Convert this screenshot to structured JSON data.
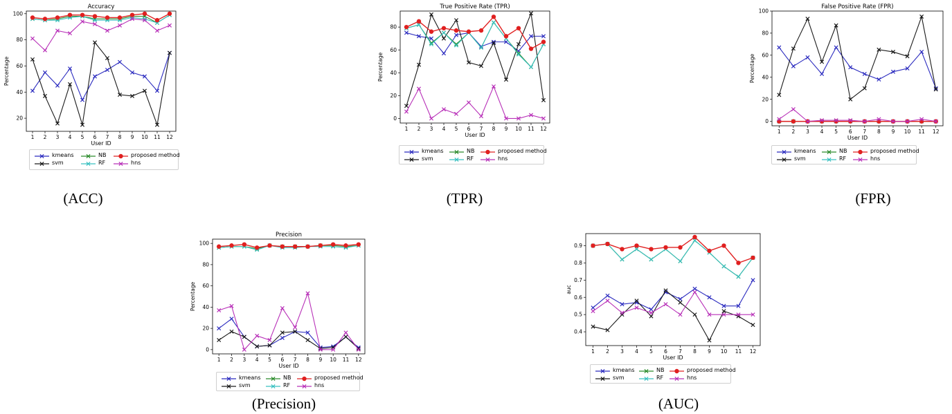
{
  "colors": {
    "kmeans": "#2b2bbf",
    "svm": "#1a1a1a",
    "NB": "#2a8a2a",
    "RF": "#38c0c0",
    "proposed": "#e02020",
    "hns": "#b830b8"
  },
  "legend_labels": {
    "kmeans": "kmeans",
    "svm": "svm",
    "NB": "NB",
    "RF": "RF",
    "proposed": "proposed method",
    "hns": "hns"
  },
  "captions": {
    "acc": "(ACC)",
    "tpr": "(TPR)",
    "fpr": "(FPR)",
    "precision": "(Precision)",
    "auc": "(AUC)"
  },
  "chart_data": [
    {
      "id": "acc",
      "type": "line",
      "title": "Accuracy",
      "xlabel": "User ID",
      "ylabel": "Percentage",
      "x": [
        1,
        2,
        3,
        4,
        5,
        6,
        7,
        8,
        9,
        10,
        11,
        12
      ],
      "ylim": [
        10,
        102
      ],
      "yticks": [
        20,
        40,
        60,
        80,
        100
      ],
      "grid": false,
      "legend_position": "below",
      "series": [
        {
          "key": "kmeans",
          "name": "kmeans",
          "values": [
            41,
            55,
            45,
            58,
            34,
            52,
            57,
            63,
            55,
            52,
            41,
            70
          ]
        },
        {
          "key": "svm",
          "name": "svm",
          "values": [
            65,
            37,
            16,
            46,
            15,
            78,
            66,
            38,
            37,
            41,
            15,
            70
          ]
        },
        {
          "key": "NB",
          "name": "NB",
          "values": [
            96,
            95,
            96,
            98,
            98,
            96,
            96,
            96,
            98,
            98,
            93,
            99
          ]
        },
        {
          "key": "RF",
          "name": "RF",
          "values": [
            96,
            95,
            95,
            97,
            98,
            95,
            95,
            95,
            97,
            96,
            93,
            99
          ]
        },
        {
          "key": "proposed",
          "name": "proposed method",
          "values": [
            97,
            96,
            97,
            99,
            99,
            98,
            97,
            97,
            99,
            100,
            95,
            100
          ]
        },
        {
          "key": "hns",
          "name": "hns",
          "values": [
            81,
            72,
            87,
            85,
            94,
            92,
            87,
            91,
            96,
            95,
            87,
            91
          ]
        }
      ]
    },
    {
      "id": "tpr",
      "type": "line",
      "title": "True Positive Rate (TPR)",
      "xlabel": "User ID",
      "ylabel": "Percentage",
      "x": [
        1,
        2,
        3,
        4,
        5,
        6,
        7,
        8,
        9,
        10,
        11,
        12
      ],
      "ylim": [
        -4,
        94
      ],
      "yticks": [
        0,
        20,
        40,
        60,
        80
      ],
      "grid": false,
      "legend_position": "below",
      "series": [
        {
          "key": "kmeans",
          "name": "kmeans",
          "values": [
            75,
            72,
            70,
            57,
            73,
            75,
            63,
            67,
            67,
            59,
            72,
            72
          ]
        },
        {
          "key": "svm",
          "name": "svm",
          "values": [
            11,
            47,
            91,
            70,
            86,
            49,
            46,
            66,
            34,
            65,
            92,
            16
          ]
        },
        {
          "key": "NB",
          "name": "NB",
          "values": [
            79,
            82,
            66,
            75,
            65,
            75,
            62,
            84,
            70,
            57,
            45,
            65
          ]
        },
        {
          "key": "RF",
          "name": "RF",
          "values": [
            79,
            82,
            65,
            75,
            64,
            75,
            62,
            84,
            70,
            56,
            45,
            65
          ]
        },
        {
          "key": "proposed",
          "name": "proposed method",
          "values": [
            80,
            85,
            76,
            79,
            77,
            76,
            77,
            89,
            72,
            79,
            61,
            67
          ]
        },
        {
          "key": "hns",
          "name": "hns",
          "values": [
            6,
            26,
            0,
            8,
            4,
            14,
            2,
            28,
            0,
            0,
            3,
            0
          ]
        }
      ]
    },
    {
      "id": "fpr",
      "type": "line",
      "title": "False Positive Rate (FPR)",
      "xlabel": "User ID",
      "ylabel": "Percentage",
      "x": [
        1,
        2,
        3,
        4,
        5,
        6,
        7,
        8,
        9,
        10,
        11,
        12
      ],
      "ylim": [
        -4,
        100
      ],
      "yticks": [
        0,
        20,
        40,
        60,
        80,
        100
      ],
      "grid": false,
      "legend_position": "below",
      "series": [
        {
          "key": "kmeans",
          "name": "kmeans",
          "values": [
            67,
            50,
            58,
            43,
            67,
            49,
            43,
            38,
            45,
            48,
            63,
            30
          ]
        },
        {
          "key": "svm",
          "name": "svm",
          "values": [
            24,
            66,
            93,
            54,
            87,
            20,
            30,
            65,
            63,
            59,
            95,
            29
          ]
        },
        {
          "key": "NB",
          "name": "NB",
          "values": [
            0,
            0,
            0,
            0,
            0,
            0,
            0,
            0,
            0,
            0,
            0,
            0
          ]
        },
        {
          "key": "RF",
          "name": "RF",
          "values": [
            0,
            0,
            0,
            0,
            0,
            0,
            0,
            0,
            0,
            0,
            0,
            0
          ]
        },
        {
          "key": "proposed",
          "name": "proposed method",
          "values": [
            0,
            0,
            0,
            0,
            0,
            0,
            0,
            0,
            0,
            0,
            0,
            0
          ]
        },
        {
          "key": "hns",
          "name": "hns",
          "values": [
            2,
            11,
            0,
            1,
            1,
            1,
            0,
            2,
            0,
            0,
            2,
            0
          ]
        }
      ]
    },
    {
      "id": "precision",
      "type": "line",
      "title": "Precision",
      "xlabel": "User ID",
      "ylabel": "Percentage",
      "x": [
        1,
        2,
        3,
        4,
        5,
        6,
        7,
        8,
        9,
        10,
        11,
        12
      ],
      "ylim": [
        -4,
        104
      ],
      "yticks": [
        0,
        20,
        40,
        60,
        80,
        100
      ],
      "grid": false,
      "legend_position": "below",
      "series": [
        {
          "key": "kmeans",
          "name": "kmeans",
          "values": [
            20,
            29,
            12,
            3,
            4,
            11,
            17,
            16,
            2,
            3,
            12,
            2
          ]
        },
        {
          "key": "svm",
          "name": "svm",
          "values": [
            9,
            17,
            12,
            3,
            4,
            16,
            17,
            9,
            1,
            2,
            12,
            1
          ]
        },
        {
          "key": "NB",
          "name": "NB",
          "values": [
            96,
            97,
            97,
            95,
            98,
            97,
            97,
            97,
            98,
            98,
            97,
            98
          ]
        },
        {
          "key": "RF",
          "name": "RF",
          "values": [
            96,
            97,
            97,
            94,
            98,
            96,
            96,
            97,
            97,
            97,
            96,
            98
          ]
        },
        {
          "key": "proposed",
          "name": "proposed method",
          "values": [
            97,
            98,
            99,
            96,
            98,
            97,
            97,
            97,
            98,
            99,
            98,
            99
          ]
        },
        {
          "key": "hns",
          "name": "hns",
          "values": [
            37,
            41,
            0,
            13,
            9,
            39,
            21,
            53,
            0,
            0,
            16,
            0
          ]
        }
      ]
    },
    {
      "id": "auc",
      "type": "line",
      "title": "",
      "xlabel": "User ID",
      "ylabel": "auc",
      "x": [
        1,
        2,
        3,
        4,
        5,
        6,
        7,
        8,
        9,
        10,
        11,
        12
      ],
      "ylim": [
        0.32,
        0.97
      ],
      "yticks": [
        0.4,
        0.5,
        0.6,
        0.7,
        0.8,
        0.9
      ],
      "ytick_labels": [
        "0.4",
        "0.5",
        "0.6",
        "0.7",
        "0.8",
        "0.9"
      ],
      "grid": false,
      "legend_position": "below",
      "series": [
        {
          "key": "kmeans",
          "name": "kmeans",
          "values": [
            0.54,
            0.61,
            0.56,
            0.57,
            0.53,
            0.63,
            0.59,
            0.65,
            0.6,
            0.55,
            0.55,
            0.7
          ]
        },
        {
          "key": "svm",
          "name": "svm",
          "values": [
            0.43,
            0.41,
            0.5,
            0.58,
            0.49,
            0.64,
            0.57,
            0.5,
            0.35,
            0.52,
            0.49,
            0.44
          ]
        },
        {
          "key": "NB",
          "name": "NB",
          "values": [
            0.9,
            0.91,
            0.82,
            0.88,
            0.82,
            0.88,
            0.81,
            0.93,
            0.86,
            0.78,
            0.72,
            0.83
          ]
        },
        {
          "key": "RF",
          "name": "RF",
          "values": [
            0.9,
            0.91,
            0.82,
            0.88,
            0.82,
            0.88,
            0.81,
            0.93,
            0.86,
            0.78,
            0.72,
            0.83
          ]
        },
        {
          "key": "proposed",
          "name": "proposed method",
          "values": [
            0.9,
            0.91,
            0.88,
            0.9,
            0.88,
            0.89,
            0.89,
            0.95,
            0.87,
            0.9,
            0.8,
            0.83
          ]
        },
        {
          "key": "hns",
          "name": "hns",
          "values": [
            0.52,
            0.58,
            0.51,
            0.54,
            0.51,
            0.56,
            0.5,
            0.63,
            0.5,
            0.5,
            0.5,
            0.5
          ]
        }
      ]
    }
  ]
}
